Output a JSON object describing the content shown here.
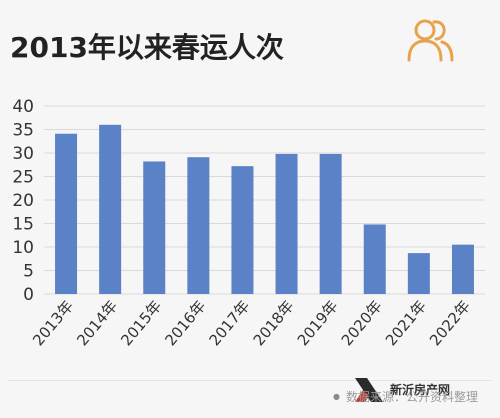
{
  "title": "2013年以来春运人次",
  "icon": "users-icon",
  "colors": {
    "bar": "#5b82c6",
    "grid": "#d9d9d9",
    "text": "#333333",
    "icon": "#e8a24a"
  },
  "footer": {
    "source": "数据来源：公开资料整理",
    "watermark": "新沂房产网"
  },
  "chart_data": {
    "type": "bar",
    "title": "2013年以来春运人次",
    "categories": [
      "2013年",
      "2014年",
      "2015年",
      "2016年",
      "2017年",
      "2018年",
      "2019年",
      "2020年",
      "2021年",
      "2022年"
    ],
    "values": [
      34.1,
      36.0,
      28.2,
      29.1,
      27.2,
      29.8,
      29.8,
      14.8,
      8.7,
      10.5
    ],
    "yticks": [
      "0",
      "5",
      "10",
      "15",
      "20",
      "25",
      "30",
      "35",
      "40"
    ],
    "ylim": [
      0,
      40
    ],
    "grid": true,
    "legend": "none"
  }
}
